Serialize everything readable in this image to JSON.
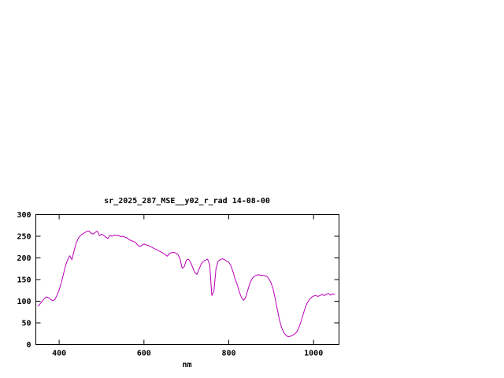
{
  "window": {
    "background_color": "#ffffff",
    "foreground_color": "#000000"
  },
  "chart_data": {
    "type": "line",
    "title": "sr_2025_287_MSE__y02_r_rad 14-08-00",
    "xlabel": "nm",
    "ylabel": "",
    "legend": "none",
    "grid": false,
    "line_color": "#bb00bb",
    "xlim": [
      345,
      1060
    ],
    "ylim": [
      0,
      300
    ],
    "xticks": [
      400,
      600,
      800,
      1000
    ],
    "yticks": [
      0,
      50,
      100,
      150,
      200,
      250,
      300
    ],
    "x": [
      350,
      355,
      360,
      365,
      370,
      375,
      380,
      385,
      390,
      395,
      400,
      405,
      410,
      415,
      420,
      425,
      430,
      435,
      440,
      445,
      450,
      455,
      460,
      465,
      470,
      475,
      480,
      485,
      490,
      495,
      500,
      505,
      510,
      515,
      520,
      525,
      530,
      535,
      540,
      545,
      550,
      555,
      560,
      565,
      570,
      575,
      580,
      585,
      590,
      595,
      600,
      605,
      610,
      615,
      620,
      625,
      630,
      635,
      640,
      645,
      650,
      655,
      660,
      665,
      670,
      675,
      680,
      685,
      690,
      695,
      700,
      705,
      710,
      715,
      720,
      725,
      730,
      735,
      740,
      745,
      750,
      755,
      760,
      765,
      770,
      775,
      780,
      785,
      790,
      795,
      800,
      805,
      810,
      815,
      820,
      825,
      830,
      835,
      840,
      845,
      850,
      855,
      860,
      865,
      870,
      875,
      880,
      885,
      890,
      895,
      900,
      905,
      910,
      915,
      920,
      925,
      930,
      935,
      940,
      945,
      950,
      955,
      960,
      965,
      970,
      975,
      980,
      985,
      990,
      995,
      1000,
      1005,
      1010,
      1015,
      1020,
      1025,
      1030,
      1035,
      1040,
      1045,
      1050
    ],
    "y": [
      88,
      94,
      100,
      106,
      110,
      108,
      104,
      101,
      104,
      114,
      126,
      142,
      162,
      182,
      196,
      205,
      196,
      216,
      234,
      245,
      251,
      255,
      258,
      261,
      262,
      257,
      255,
      259,
      262,
      251,
      255,
      252,
      248,
      245,
      252,
      250,
      253,
      251,
      252,
      249,
      250,
      248,
      246,
      242,
      240,
      238,
      236,
      230,
      226,
      229,
      232,
      230,
      229,
      226,
      224,
      221,
      219,
      216,
      214,
      211,
      208,
      204,
      210,
      212,
      213,
      211,
      208,
      198,
      176,
      180,
      195,
      197,
      190,
      178,
      166,
      162,
      174,
      186,
      192,
      195,
      197,
      184,
      113,
      124,
      176,
      192,
      196,
      198,
      196,
      193,
      190,
      182,
      168,
      151,
      138,
      121,
      108,
      102,
      109,
      126,
      142,
      152,
      157,
      160,
      161,
      160,
      160,
      159,
      157,
      151,
      142,
      127,
      104,
      79,
      55,
      38,
      27,
      21,
      18,
      19,
      21,
      24,
      29,
      38,
      52,
      68,
      84,
      96,
      104,
      109,
      112,
      113,
      111,
      113,
      116,
      113,
      116,
      118,
      114,
      117,
      116
    ]
  }
}
